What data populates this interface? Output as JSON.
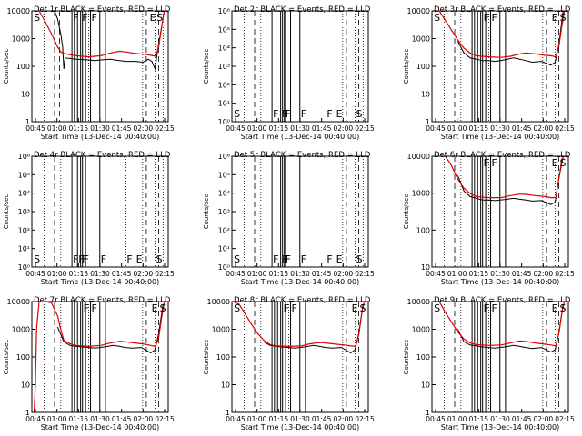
{
  "figure": {
    "xlabel": "Start Time (13-Dec-14 00:40:00)",
    "ylabel": "Counts/sec",
    "xticks": [
      "00:45",
      "01:00",
      "01:15",
      "01:30",
      "01:45",
      "02:00",
      "02:15"
    ],
    "legend_note": "BLACK = Events, RED = LLD"
  },
  "colors": {
    "events": "#000000",
    "lld": "#e00000",
    "axes": "#000000"
  },
  "chart_data": [
    {
      "type": "line",
      "title": "Det 1r BLACK = Events, RED = LLD",
      "scale": "log",
      "ylim": [
        1,
        10000
      ],
      "yticks": [
        "1",
        "10",
        "100",
        "1000",
        "10000"
      ],
      "xlim": [
        0.0833,
        2.2833
      ],
      "dotted_x": [
        0.28,
        1.0,
        1.87,
        2.07,
        2.2
      ],
      "dashed_x": [
        0.45,
        0.53,
        1.93,
        2.13
      ],
      "solid_x": [
        0.73,
        0.77,
        0.82,
        0.87,
        0.9,
        0.95,
        1.03,
        1.18,
        1.27
      ],
      "letters": [
        {
          "t": "S",
          "x": 0.1
        },
        {
          "t": "F",
          "x": 0.73
        },
        {
          "t": "F",
          "x": 0.88
        },
        {
          "t": "F",
          "x": 1.03
        },
        {
          "t": "E",
          "x": 1.97
        },
        {
          "t": "S",
          "x": 2.08
        }
      ],
      "series": [
        {
          "name": "Events",
          "color": "#000000",
          "x": [
            0.45,
            0.5,
            0.55,
            0.58,
            0.6,
            0.62,
            0.8,
            1.0,
            1.1,
            1.2,
            1.35,
            1.5,
            1.6,
            1.75,
            1.88,
            1.96,
            2.02,
            2.07,
            2.12,
            2.18
          ],
          "y": [
            10000,
            5000,
            1500,
            500,
            80,
            200,
            180,
            170,
            160,
            170,
            180,
            160,
            150,
            150,
            140,
            180,
            150,
            80,
            500,
            3000
          ]
        },
        {
          "name": "LLD",
          "color": "#e00000",
          "x": [
            0.2,
            0.3,
            0.4,
            0.5,
            0.55,
            0.6,
            0.7,
            0.8,
            1.0,
            1.2,
            1.35,
            1.5,
            1.6,
            1.75,
            1.9,
            2.0,
            2.08,
            2.13,
            2.18,
            2.22
          ],
          "y": [
            10000,
            4000,
            1500,
            500,
            330,
            290,
            260,
            240,
            220,
            240,
            300,
            350,
            330,
            290,
            270,
            250,
            230,
            500,
            3000,
            10000
          ]
        }
      ]
    },
    {
      "type": "line",
      "title": "Det 2r BLACK = Events, RED = LLD",
      "scale": "exp",
      "ylim": [
        1,
        1000000
      ],
      "yticks": [
        "10⁰",
        "10¹",
        "10²",
        "10³",
        "10⁴",
        "10⁵",
        "10⁶"
      ],
      "xlim": [
        0.0833,
        2.2833
      ],
      "dotted_x": [
        0.28,
        0.55,
        1.6,
        1.87,
        2.07,
        2.2
      ],
      "dashed_x": [
        0.45,
        1.93,
        2.13
      ],
      "solid_x": [
        0.73,
        0.87,
        0.9,
        0.93,
        0.95,
        1.03,
        1.18
      ],
      "letters": [
        {
          "t": "S",
          "x": 0.1
        },
        {
          "t": "F",
          "x": 0.73
        },
        {
          "t": "F",
          "x": 0.87
        },
        {
          "t": "F",
          "x": 0.9
        },
        {
          "t": "F",
          "x": 0.93
        },
        {
          "t": "F",
          "x": 1.18
        },
        {
          "t": "F",
          "x": 1.6
        },
        {
          "t": "E",
          "x": 1.75
        },
        {
          "t": "S",
          "x": 2.07
        }
      ],
      "series": []
    },
    {
      "type": "line",
      "title": "Det 3r BLACK = Events, RED = LLD",
      "scale": "log",
      "ylim": [
        1,
        10000
      ],
      "yticks": [
        "1",
        "10",
        "100",
        "1000",
        "10000"
      ],
      "xlim": [
        0.0833,
        2.2833
      ],
      "dotted_x": [
        0.28,
        0.55,
        1.0,
        1.87,
        2.07
      ],
      "dashed_x": [
        0.45,
        1.93,
        2.13
      ],
      "solid_x": [
        0.73,
        0.77,
        0.82,
        0.87,
        0.9,
        0.95,
        1.03,
        1.18,
        1.27
      ],
      "letters": [
        {
          "t": "S",
          "x": 0.1
        },
        {
          "t": "F",
          "x": 0.9
        },
        {
          "t": "F",
          "x": 1.03
        },
        {
          "t": "E",
          "x": 2.0
        },
        {
          "t": "S",
          "x": 2.13
        }
      ],
      "series": [
        {
          "name": "Events",
          "color": "#000000",
          "x": [
            0.5,
            0.6,
            0.7,
            0.8,
            0.9,
            1.0,
            1.1,
            1.25,
            1.4,
            1.5,
            1.6,
            1.7,
            1.85,
            2.0,
            2.07,
            2.13,
            2.2
          ],
          "y": [
            800,
            300,
            200,
            180,
            160,
            160,
            150,
            170,
            200,
            180,
            160,
            140,
            150,
            110,
            140,
            600,
            10000
          ]
        },
        {
          "name": "LLD",
          "color": "#e00000",
          "x": [
            0.1,
            0.2,
            0.3,
            0.4,
            0.5,
            0.6,
            0.7,
            0.8,
            1.0,
            1.2,
            1.35,
            1.5,
            1.6,
            1.75,
            1.9,
            2.0,
            2.08,
            2.13,
            2.18,
            2.22
          ],
          "y": [
            10000,
            10000,
            4500,
            2000,
            900,
            450,
            300,
            240,
            220,
            210,
            230,
            280,
            300,
            280,
            250,
            240,
            220,
            500,
            3000,
            10000
          ]
        }
      ]
    },
    {
      "type": "line",
      "title": "Det 4r BLACK = Events, RED = LLD",
      "scale": "exp",
      "ylim": [
        1,
        1000000
      ],
      "yticks": [
        "10⁰",
        "10¹",
        "10²",
        "10³",
        "10⁴",
        "10⁵",
        "10⁶"
      ],
      "xlim": [
        0.0833,
        2.2833
      ],
      "dotted_x": [
        0.28,
        0.55,
        1.6,
        1.87,
        2.07,
        2.2
      ],
      "dashed_x": [
        0.45,
        1.93,
        2.13
      ],
      "solid_x": [
        0.73,
        0.82,
        0.87,
        0.9,
        0.95,
        1.18
      ],
      "letters": [
        {
          "t": "S",
          "x": 0.1
        },
        {
          "t": "F",
          "x": 0.73
        },
        {
          "t": "F",
          "x": 0.82
        },
        {
          "t": "F",
          "x": 0.87
        },
        {
          "t": "F",
          "x": 0.9
        },
        {
          "t": "F",
          "x": 1.18
        },
        {
          "t": "F",
          "x": 1.6
        },
        {
          "t": "E",
          "x": 1.75
        },
        {
          "t": "S",
          "x": 2.07
        }
      ],
      "series": []
    },
    {
      "type": "line",
      "title": "Det 5r BLACK = Events, RED = LLD",
      "scale": "exp",
      "ylim": [
        1,
        1000000
      ],
      "yticks": [
        "10⁰",
        "10¹",
        "10²",
        "10³",
        "10⁴",
        "10⁵",
        "10⁶"
      ],
      "xlim": [
        0.0833,
        2.2833
      ],
      "dotted_x": [
        0.28,
        0.55,
        1.6,
        1.87,
        2.07,
        2.2
      ],
      "dashed_x": [
        0.45,
        1.93,
        2.13
      ],
      "solid_x": [
        0.73,
        0.87,
        0.9,
        0.93,
        0.95,
        1.18
      ],
      "letters": [
        {
          "t": "S",
          "x": 0.1
        },
        {
          "t": "F",
          "x": 0.73
        },
        {
          "t": "F",
          "x": 0.87
        },
        {
          "t": "F",
          "x": 0.9
        },
        {
          "t": "F",
          "x": 0.93
        },
        {
          "t": "F",
          "x": 1.18
        },
        {
          "t": "F",
          "x": 1.6
        },
        {
          "t": "E",
          "x": 1.75
        },
        {
          "t": "S",
          "x": 2.07
        }
      ],
      "series": []
    },
    {
      "type": "line",
      "title": "Det 6r BLACK = Events, RED = LLD",
      "scale": "exp",
      "ylim": [
        1,
        10000
      ],
      "yticks": [
        "10",
        "100",
        "1000",
        "10000"
      ],
      "xlim": [
        0.0833,
        2.2833
      ],
      "dotted_x": [
        0.28,
        0.55,
        1.0,
        1.87,
        2.07
      ],
      "dashed_x": [
        0.45,
        1.93,
        2.13
      ],
      "solid_x": [
        0.73,
        0.77,
        0.82,
        0.87,
        0.9,
        0.95,
        1.03,
        1.18,
        1.27
      ],
      "letters": [
        {
          "t": "F",
          "x": 0.9
        },
        {
          "t": "F",
          "x": 1.03
        },
        {
          "t": "E",
          "x": 2.0
        },
        {
          "t": "S",
          "x": 2.13
        }
      ],
      "series": [
        {
          "name": "Events",
          "color": "#000000",
          "x": [
            0.5,
            0.6,
            0.7,
            0.8,
            0.9,
            1.0,
            1.1,
            1.25,
            1.4,
            1.5,
            1.6,
            1.7,
            1.85,
            2.0,
            2.07,
            2.13,
            2.2
          ],
          "y": [
            2000,
            550,
            350,
            300,
            260,
            260,
            250,
            270,
            300,
            280,
            260,
            240,
            250,
            180,
            220,
            1500,
            10000
          ]
        },
        {
          "name": "LLD",
          "color": "#e00000",
          "x": [
            0.3,
            0.4,
            0.5,
            0.6,
            0.7,
            0.8,
            1.0,
            1.2,
            1.35,
            1.5,
            1.6,
            1.75,
            1.9,
            2.0,
            2.08,
            2.13,
            2.18,
            2.22
          ],
          "y": [
            10000,
            4500,
            1500,
            700,
            450,
            350,
            320,
            320,
            380,
            430,
            420,
            380,
            350,
            320,
            320,
            1500,
            8000,
            10000
          ]
        }
      ]
    },
    {
      "type": "line",
      "title": "Det 7r BLACK = Events, RED = LLD",
      "scale": "log",
      "ylim": [
        1,
        10000
      ],
      "yticks": [
        "1",
        "10",
        "100",
        "1000",
        "10000"
      ],
      "xlim": [
        0.0833,
        2.2833
      ],
      "dotted_x": [
        0.28,
        0.55,
        1.0,
        1.87,
        2.07
      ],
      "dashed_x": [
        0.45,
        1.93,
        2.13
      ],
      "solid_x": [
        0.73,
        0.77,
        0.82,
        0.87,
        0.9,
        0.95,
        1.03,
        1.18,
        1.27
      ],
      "letters": [
        {
          "t": "F",
          "x": 0.9
        },
        {
          "t": "F",
          "x": 1.03
        },
        {
          "t": "E",
          "x": 2.0
        },
        {
          "t": "S",
          "x": 2.13
        }
      ],
      "series": [
        {
          "name": "Events",
          "color": "#000000",
          "x": [
            0.5,
            0.6,
            0.7,
            0.8,
            0.9,
            1.0,
            1.1,
            1.25,
            1.4,
            1.5,
            1.6,
            1.7,
            1.85,
            2.0,
            2.07,
            2.13,
            2.2
          ],
          "y": [
            1200,
            350,
            260,
            240,
            230,
            220,
            210,
            230,
            260,
            240,
            220,
            210,
            220,
            140,
            180,
            700,
            8000
          ]
        },
        {
          "name": "LLD",
          "color": "#e00000",
          "x": [
            0.12,
            0.14,
            0.16,
            0.2,
            0.3,
            0.4,
            0.5,
            0.55,
            0.6,
            0.7,
            0.8,
            1.0,
            1.2,
            1.35,
            1.5,
            1.6,
            1.75,
            1.9,
            2.0,
            2.08,
            2.13,
            2.18,
            2.22
          ],
          "y": [
            1,
            10,
            1000,
            10000,
            10000,
            9000,
            3000,
            1000,
            400,
            300,
            260,
            240,
            260,
            320,
            370,
            350,
            320,
            290,
            260,
            240,
            500,
            3000,
            10000
          ]
        }
      ]
    },
    {
      "type": "line",
      "title": "Det 8r BLACK = Events, RED = LLD",
      "scale": "log",
      "ylim": [
        1,
        10000
      ],
      "yticks": [
        "1",
        "10",
        "100",
        "1000",
        "10000"
      ],
      "xlim": [
        0.0833,
        2.2833
      ],
      "dotted_x": [
        0.28,
        0.55,
        1.0,
        1.87,
        2.07
      ],
      "dashed_x": [
        0.45,
        1.93,
        2.13
      ],
      "solid_x": [
        0.73,
        0.77,
        0.82,
        0.87,
        0.9,
        0.95,
        1.03,
        1.18,
        1.27
      ],
      "letters": [
        {
          "t": "S",
          "x": 0.1
        },
        {
          "t": "F",
          "x": 0.9
        },
        {
          "t": "F",
          "x": 1.03
        },
        {
          "t": "E",
          "x": 2.0
        },
        {
          "t": "S",
          "x": 2.13
        }
      ],
      "series": [
        {
          "name": "Events",
          "color": "#000000",
          "x": [
            0.6,
            0.7,
            0.8,
            0.9,
            1.0,
            1.1,
            1.25,
            1.4,
            1.5,
            1.6,
            1.7,
            1.85,
            2.0,
            2.07,
            2.13,
            2.2
          ],
          "y": [
            350,
            260,
            240,
            230,
            220,
            210,
            230,
            260,
            240,
            220,
            210,
            220,
            140,
            180,
            700,
            8000
          ]
        },
        {
          "name": "LLD",
          "color": "#e00000",
          "x": [
            0.1,
            0.2,
            0.3,
            0.4,
            0.5,
            0.6,
            0.7,
            0.8,
            1.0,
            1.2,
            1.35,
            1.5,
            1.6,
            1.75,
            1.9,
            2.0,
            2.08,
            2.13,
            2.18,
            2.22
          ],
          "y": [
            10000,
            8000,
            3500,
            1500,
            700,
            400,
            280,
            250,
            240,
            250,
            300,
            330,
            320,
            290,
            270,
            250,
            240,
            600,
            4000,
            10000
          ]
        }
      ]
    },
    {
      "type": "line",
      "title": "Det 9r BLACK = Events, RED = LLD",
      "scale": "log",
      "ylim": [
        1,
        10000
      ],
      "yticks": [
        "1",
        "10",
        "100",
        "1000",
        "10000"
      ],
      "xlim": [
        0.0833,
        2.2833
      ],
      "dotted_x": [
        0.28,
        0.55,
        1.0,
        1.87,
        2.07
      ],
      "dashed_x": [
        0.45,
        1.93,
        2.13
      ],
      "solid_x": [
        0.73,
        0.77,
        0.82,
        0.87,
        0.9,
        0.95,
        1.03,
        1.18,
        1.27
      ],
      "letters": [
        {
          "t": "S",
          "x": 0.1
        },
        {
          "t": "F",
          "x": 0.9
        },
        {
          "t": "F",
          "x": 1.03
        },
        {
          "t": "E",
          "x": 2.0
        },
        {
          "t": "S",
          "x": 2.13
        }
      ],
      "series": [
        {
          "name": "Events",
          "color": "#000000",
          "x": [
            0.5,
            0.6,
            0.7,
            0.8,
            0.9,
            1.0,
            1.1,
            1.25,
            1.4,
            1.5,
            1.6,
            1.7,
            1.85,
            2.0,
            2.07,
            2.13,
            2.2
          ],
          "y": [
            1000,
            350,
            270,
            250,
            230,
            220,
            210,
            230,
            260,
            240,
            220,
            200,
            220,
            150,
            180,
            700,
            8000
          ]
        },
        {
          "name": "LLD",
          "color": "#e00000",
          "x": [
            0.1,
            0.2,
            0.3,
            0.4,
            0.5,
            0.6,
            0.7,
            0.8,
            1.0,
            1.2,
            1.35,
            1.5,
            1.6,
            1.75,
            1.9,
            2.0,
            2.08,
            2.13,
            2.18,
            2.22
          ],
          "y": [
            10000,
            10000,
            4000,
            1800,
            800,
            450,
            320,
            280,
            260,
            270,
            320,
            380,
            360,
            320,
            290,
            270,
            250,
            700,
            4000,
            10000
          ]
        }
      ]
    }
  ]
}
